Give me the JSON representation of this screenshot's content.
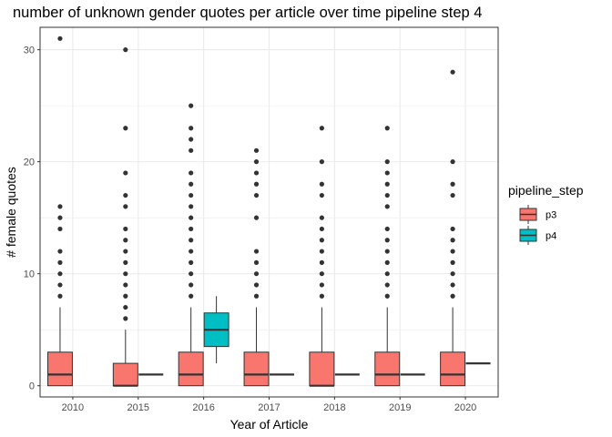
{
  "chart_data": {
    "type": "boxplot",
    "title": "number of unknown gender quotes per article over time pipeline step 4",
    "xlabel": "Year of Article",
    "ylabel": "# female quotes",
    "categories": [
      "2010",
      "2015",
      "2016",
      "2017",
      "2018",
      "2019",
      "2020"
    ],
    "yticks": [
      0,
      10,
      20,
      30
    ],
    "ylim": [
      -1,
      32
    ],
    "grid": true,
    "legend": {
      "title": "pipeline_step",
      "position": "right",
      "entries": [
        {
          "name": "p3",
          "color": "#F8766D"
        },
        {
          "name": "p4",
          "color": "#00BFC4"
        }
      ]
    },
    "series": [
      {
        "name": "p3",
        "color": "#F8766D",
        "boxes": [
          {
            "category": "2010",
            "min": 0,
            "q1": 0,
            "median": 1,
            "q3": 3,
            "max": 7,
            "outliers": [
              8,
              9,
              10,
              11,
              12,
              14,
              15,
              16,
              31
            ]
          },
          {
            "category": "2015",
            "min": 0,
            "q1": 0,
            "median": 0,
            "q3": 2,
            "max": 5,
            "outliers": [
              6,
              7,
              8,
              9,
              10,
              11,
              12,
              13,
              14,
              16,
              17,
              19,
              23,
              30
            ]
          },
          {
            "category": "2016",
            "min": 0,
            "q1": 0,
            "median": 1,
            "q3": 3,
            "max": 7,
            "outliers": [
              8,
              9,
              10,
              11,
              12,
              13,
              14,
              15,
              16,
              17,
              18,
              19,
              21,
              22,
              23,
              25
            ]
          },
          {
            "category": "2017",
            "min": 0,
            "q1": 0,
            "median": 1,
            "q3": 3,
            "max": 7,
            "outliers": [
              8,
              9,
              10,
              11,
              12,
              15,
              17,
              18,
              19,
              20,
              21
            ]
          },
          {
            "category": "2018",
            "min": 0,
            "q1": 0,
            "median": 0,
            "q3": 3,
            "max": 7,
            "outliers": [
              8,
              9,
              10,
              11,
              12,
              13,
              14,
              15,
              17,
              18,
              20,
              23
            ]
          },
          {
            "category": "2019",
            "min": 0,
            "q1": 0,
            "median": 1,
            "q3": 3,
            "max": 7,
            "outliers": [
              8,
              9,
              10,
              11,
              12,
              13,
              14,
              16,
              17,
              18,
              19,
              20,
              23
            ]
          },
          {
            "category": "2020",
            "min": 0,
            "q1": 0,
            "median": 1,
            "q3": 3,
            "max": 7,
            "outliers": [
              8,
              9,
              10,
              11,
              12,
              13,
              14,
              17,
              18,
              20,
              28
            ]
          }
        ]
      },
      {
        "name": "p4",
        "color": "#00BFC4",
        "boxes": [
          {
            "category": "2015",
            "min": 1,
            "q1": 1,
            "median": 1,
            "q3": 1,
            "max": 1,
            "outliers": []
          },
          {
            "category": "2016",
            "min": 2,
            "q1": 3.5,
            "median": 5,
            "q3": 6.5,
            "max": 8,
            "outliers": []
          },
          {
            "category": "2017",
            "min": 1,
            "q1": 1,
            "median": 1,
            "q3": 1,
            "max": 1,
            "outliers": []
          },
          {
            "category": "2018",
            "min": 1,
            "q1": 1,
            "median": 1,
            "q3": 1,
            "max": 1,
            "outliers": []
          },
          {
            "category": "2019",
            "min": 1,
            "q1": 1,
            "median": 1,
            "q3": 1,
            "max": 1,
            "outliers": []
          },
          {
            "category": "2020",
            "min": 2,
            "q1": 2,
            "median": 2,
            "q3": 2,
            "max": 2,
            "outliers": []
          }
        ]
      }
    ]
  }
}
